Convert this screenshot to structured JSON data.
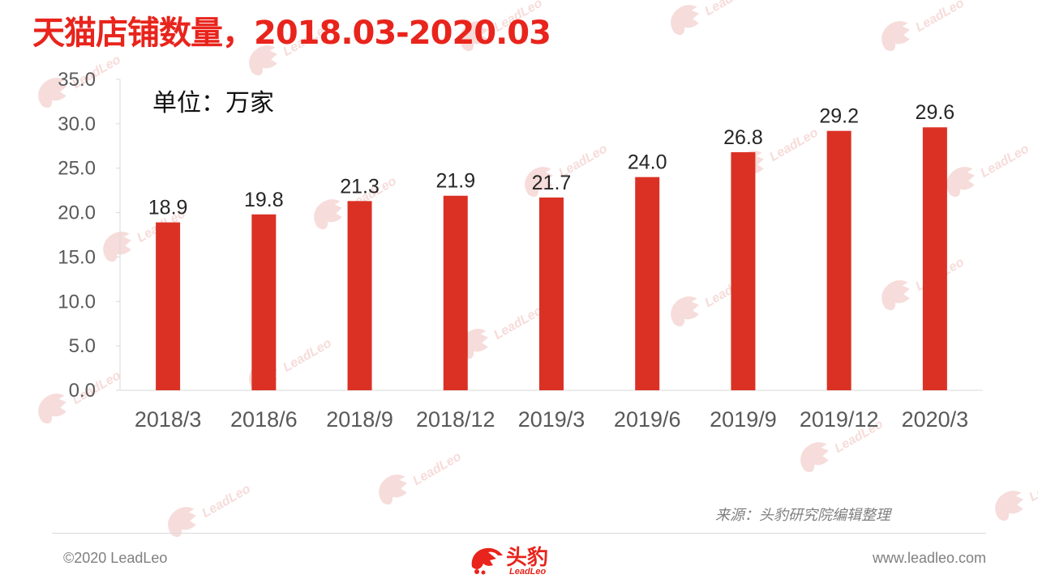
{
  "title": "天猫店铺数量，2018.03-2020.03",
  "unit_label": "单位：万家",
  "source": "来源：头豹研究院编辑整理",
  "footer": {
    "copyright": "©2020 LeadLeo",
    "website": "www.leadleo.com",
    "logo_cn": "头豹",
    "logo_en": "LeadLeo"
  },
  "watermark_text": "LeadLeo",
  "colors": {
    "bar": "#db3124",
    "title": "#e8241c",
    "axis": "#d9d9d9",
    "tick_text": "#595959"
  },
  "chart_data": {
    "type": "bar",
    "title": "天猫店铺数量，2018.03-2020.03",
    "xlabel": "",
    "ylabel": "",
    "categories": [
      "2018/3",
      "2018/6",
      "2018/9",
      "2018/12",
      "2019/3",
      "2019/6",
      "2019/9",
      "2019/12",
      "2020/3"
    ],
    "values": [
      18.9,
      19.8,
      21.3,
      21.9,
      21.7,
      24.0,
      26.8,
      29.2,
      29.6
    ],
    "value_labels": [
      "18.9",
      "19.8",
      "21.3",
      "21.9",
      "21.7",
      "24.0",
      "26.8",
      "29.2",
      "29.6"
    ],
    "ylim": [
      0,
      35
    ],
    "yticks": [
      "0.0",
      "5.0",
      "10.0",
      "15.0",
      "20.0",
      "25.0",
      "30.0",
      "35.0"
    ],
    "grid": false,
    "legend": "none"
  }
}
